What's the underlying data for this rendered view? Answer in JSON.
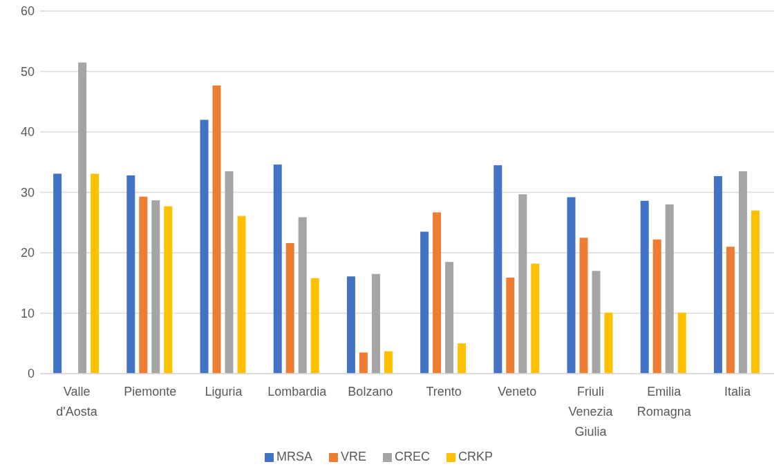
{
  "chart_data": {
    "type": "bar",
    "categories": [
      "Valle d'Aosta",
      "Piemonte",
      "Liguria",
      "Lombardia",
      "Bolzano",
      "Trento",
      "Veneto",
      "Friuli Venezia Giulia",
      "Emilia Romagna",
      "Italia"
    ],
    "series": [
      {
        "name": "MRSA",
        "color": "#4472c4",
        "values": [
          33.1,
          32.8,
          42.0,
          34.6,
          16.1,
          23.5,
          34.5,
          29.2,
          28.6,
          32.7
        ]
      },
      {
        "name": "VRE",
        "color": "#ed7d31",
        "values": [
          null,
          29.3,
          47.7,
          21.6,
          3.5,
          26.7,
          15.9,
          22.5,
          22.2,
          21.0
        ]
      },
      {
        "name": "CREC",
        "color": "#a5a5a5",
        "values": [
          51.5,
          28.7,
          33.5,
          25.9,
          16.5,
          18.5,
          29.7,
          17.0,
          28.0,
          33.5
        ]
      },
      {
        "name": "CRKP",
        "color": "#ffc000",
        "values": [
          33.1,
          27.7,
          26.1,
          15.8,
          3.7,
          5.0,
          18.2,
          10.1,
          10.1,
          27.0
        ]
      }
    ],
    "ylim": [
      0,
      60
    ],
    "yticks": [
      0,
      10,
      20,
      30,
      40,
      50,
      60
    ],
    "grid": "y",
    "legend": "bottom"
  }
}
